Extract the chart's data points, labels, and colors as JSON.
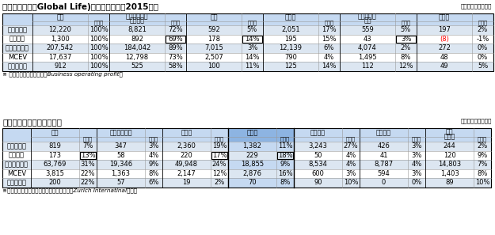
{
  "title1": "生命保険事業（Global Life)の地域別内訳（2015年）",
  "unit1": "（単位：百万ドル）",
  "title2": "うち　欧州の主要国別内訳",
  "unit2": "（単位：百万ドル）",
  "note1": "※ 営業利益（税引後）は「Business operating profit」",
  "note2": "※「欧州その他」には、中東・アフリカ及びZurich Internatinalを含む",
  "header_bg": "#c5d9f1",
  "row_bg_light": "#dce6f1",
  "table1": {
    "col_groups": [
      "全体",
      "欧州・中東・\nアフリカ",
      "米国",
      "中南米",
      "アジア・太\n平洋",
      "その他"
    ],
    "rows": [
      {
        "label": "収入保険料",
        "data": [
          "12,220",
          "100%",
          "8,821",
          "72%",
          "592",
          "5%",
          "2,051",
          "17%",
          "559",
          "5%",
          "197",
          "2%"
        ],
        "special": [],
        "red_idx": []
      },
      {
        "label": "営業利益",
        "data": [
          "1,300",
          "100%",
          "892",
          "69%",
          "178",
          "14%",
          "195",
          "15%",
          "43",
          "3%",
          "(8)",
          "-1%"
        ],
        "special": [
          3,
          5,
          9
        ],
        "red_idx": [
          10
        ]
      },
      {
        "label": "準備金と負債",
        "data": [
          "207,542",
          "100%",
          "184,042",
          "89%",
          "7,015",
          "3%",
          "12,139",
          "6%",
          "4,074",
          "2%",
          "272",
          "0%"
        ],
        "special": [],
        "red_idx": []
      },
      {
        "label": "MCEV",
        "data": [
          "17,637",
          "100%",
          "12,798",
          "73%",
          "2,507",
          "14%",
          "790",
          "4%",
          "1,495",
          "8%",
          "48",
          "0%"
        ],
        "special": [],
        "red_idx": []
      },
      {
        "label": "新契約価値",
        "data": [
          "912",
          "100%",
          "525",
          "58%",
          "100",
          "11%",
          "125",
          "14%",
          "112",
          "12%",
          "49",
          "5%"
        ],
        "special": [],
        "red_idx": []
      }
    ]
  },
  "table2": {
    "col_groups": [
      "英国",
      "アイルランド",
      "ドイツ",
      "スイス",
      "スペイン",
      "イタリア",
      "欧州\nその他"
    ],
    "highlight_col": 3,
    "rows": [
      {
        "label": "収入保険料",
        "data": [
          "819",
          "7%",
          "347",
          "3%",
          "2,360",
          "19%",
          "1,382",
          "11%",
          "3,243",
          "27%",
          "426",
          "3%",
          "244",
          "2%"
        ],
        "special": [],
        "red_idx": []
      },
      {
        "label": "営業利益",
        "data": [
          "173",
          "13%",
          "58",
          "4%",
          "220",
          "17%",
          "229",
          "18%",
          "50",
          "4%",
          "41",
          "3%",
          "120",
          "9%"
        ],
        "special": [
          1,
          5,
          7
        ],
        "red_idx": []
      },
      {
        "label": "準備金と負債",
        "data": [
          "63,769",
          "31%",
          "19,346",
          "9%",
          "49,948",
          "24%",
          "18,855",
          "9%",
          "8,534",
          "4%",
          "8,787",
          "4%",
          "14,803",
          "7%"
        ],
        "special": [],
        "red_idx": []
      },
      {
        "label": "MCEV",
        "data": [
          "3,815",
          "22%",
          "1,363",
          "8%",
          "2,147",
          "12%",
          "2,876",
          "16%",
          "600",
          "3%",
          "594",
          "3%",
          "1,403",
          "8%"
        ],
        "special": [],
        "red_idx": []
      },
      {
        "label": "新契約価値",
        "data": [
          "200",
          "22%",
          "57",
          "6%",
          "19",
          "2%",
          "70",
          "8%",
          "90",
          "10%",
          "0",
          "0%",
          "89",
          "10%"
        ],
        "special": [],
        "red_idx": []
      }
    ]
  }
}
